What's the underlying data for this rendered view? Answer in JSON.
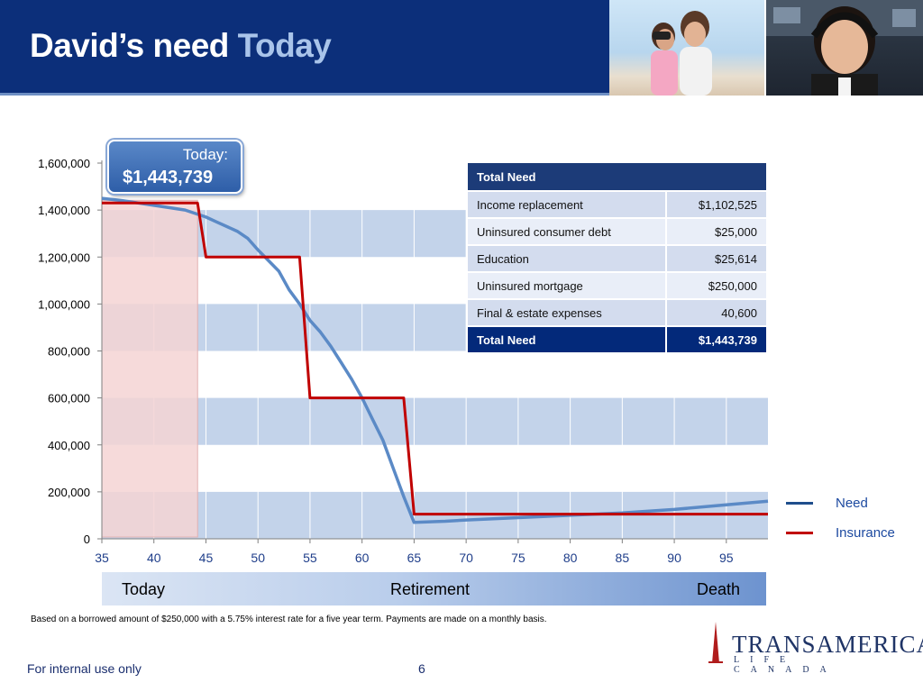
{
  "header": {
    "title_main": "David’s need",
    "title_accent": "Today"
  },
  "callout": {
    "label": "Today:",
    "value": "$1,443,739"
  },
  "table": {
    "header": "Total Need",
    "rows": [
      {
        "label": "Income replacement",
        "value": "$1,102,525"
      },
      {
        "label": "Uninsured consumer debt",
        "value": "$25,000"
      },
      {
        "label": "Education",
        "value": "$25,614"
      },
      {
        "label": "Uninsured mortgage",
        "value": "$250,000"
      },
      {
        "label": "Final & estate expenses",
        "value": "40,600"
      }
    ],
    "total_label": "Total Need",
    "total_value": "$1,443,739"
  },
  "timeline": {
    "today": "Today",
    "retirement": "Retirement",
    "death": "Death"
  },
  "footnote": "Based on a borrowed amount of $250,000 with a 5.75% interest rate for a five year term.  Payments are made on a monthly basis.",
  "footer": {
    "left": "For internal use only",
    "page": "6"
  },
  "logo": {
    "name": "TRANSAMERICA",
    "sub": "LIFE CANADA"
  },
  "colors": {
    "need": "#5b8ac6",
    "insurance": "#c00000",
    "band": "#c3d3ea",
    "highlight": "#f4d3d3"
  },
  "chart_data": {
    "type": "line",
    "xlim": [
      35,
      99
    ],
    "ylim": [
      0,
      1600000
    ],
    "x_ticks": [
      "35",
      "40",
      "45",
      "50",
      "55",
      "60",
      "65",
      "70",
      "75",
      "80",
      "85",
      "90",
      "95"
    ],
    "y_ticks": [
      "0",
      "200,000",
      "400,000",
      "600,000",
      "800,000",
      "1,000,000",
      "1,200,000",
      "1,400,000",
      "1,600,000"
    ],
    "highlight_range": [
      35,
      44.2
    ],
    "series": [
      {
        "name": "Need",
        "color": "#5b8ac6",
        "points": [
          [
            35,
            1450000
          ],
          [
            37,
            1440000
          ],
          [
            40,
            1420000
          ],
          [
            43,
            1400000
          ],
          [
            45,
            1370000
          ],
          [
            46,
            1350000
          ],
          [
            48,
            1310000
          ],
          [
            49,
            1280000
          ],
          [
            50,
            1230000
          ],
          [
            52,
            1140000
          ],
          [
            53,
            1060000
          ],
          [
            54,
            1000000
          ],
          [
            55,
            930000
          ],
          [
            56,
            880000
          ],
          [
            57,
            820000
          ],
          [
            58,
            750000
          ],
          [
            59,
            680000
          ],
          [
            60,
            600000
          ],
          [
            61,
            510000
          ],
          [
            62,
            420000
          ],
          [
            63,
            300000
          ],
          [
            64,
            180000
          ],
          [
            65,
            70000
          ],
          [
            68,
            75000
          ],
          [
            70,
            80000
          ],
          [
            75,
            90000
          ],
          [
            80,
            100000
          ],
          [
            85,
            110000
          ],
          [
            90,
            125000
          ],
          [
            95,
            145000
          ],
          [
            99,
            160000
          ]
        ]
      },
      {
        "name": "Insurance",
        "color": "#c00000",
        "points": [
          [
            35,
            1430000
          ],
          [
            44.2,
            1430000
          ],
          [
            45,
            1200000
          ],
          [
            54,
            1200000
          ],
          [
            55,
            600000
          ],
          [
            64,
            600000
          ],
          [
            65,
            105000
          ],
          [
            99,
            105000
          ]
        ]
      }
    ]
  }
}
